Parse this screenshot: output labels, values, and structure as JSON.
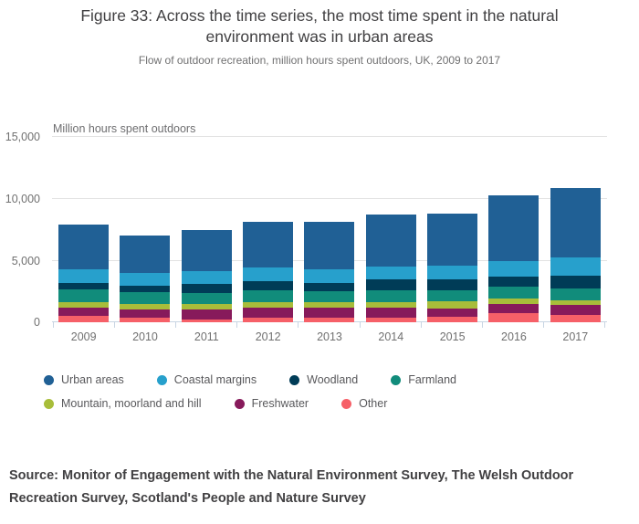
{
  "header": {
    "title": "Figure 33: Across the time series, the most time spent in the natural environment was in urban areas",
    "subtitle": "Flow of outdoor recreation, million hours spent outdoors, UK, 2009 to 2017"
  },
  "axis": {
    "y_title": "Million hours spent outdoors",
    "y_tick_labels": [
      "15,000",
      "10,000",
      "5,000",
      "0"
    ]
  },
  "source": "Source: Monitor of Engagement with the Natural Environment Survey, The Welsh Outdoor Recreation Survey, Scotland's People and Nature Survey",
  "colors": {
    "urban_areas": "#206095",
    "coastal_margins": "#27A0CC",
    "woodland": "#003C57",
    "farmland": "#118C7B",
    "mountain_moorland_and_hill": "#A8BD3A",
    "freshwater": "#871A5B",
    "other": "#F66068",
    "gridline": "#e2e2e2",
    "axis_line": "#c8d5e3",
    "title_text": "#414042",
    "muted_text": "#707070"
  },
  "legend": {
    "items": [
      {
        "label": "Urban areas",
        "color": "#206095"
      },
      {
        "label": "Coastal margins",
        "color": "#27A0CC"
      },
      {
        "label": "Woodland",
        "color": "#003C57"
      },
      {
        "label": "Farmland",
        "color": "#118C7B"
      },
      {
        "label": "Mountain, moorland and hill",
        "color": "#A8BD3A"
      },
      {
        "label": "Freshwater",
        "color": "#871A5B"
      },
      {
        "label": "Other",
        "color": "#F66068"
      }
    ]
  },
  "chart_data": {
    "type": "bar",
    "stacked": true,
    "title": "Figure 33: Across the time series, the most time spent in the natural environment was in urban areas",
    "subtitle": "Flow of outdoor recreation, million hours spent outdoors, UK, 2009 to 2017",
    "ylabel": "Million hours spent outdoors",
    "xlabel": "",
    "ylim": [
      0,
      15000
    ],
    "y_gridlines": [
      0,
      5000,
      10000,
      15000
    ],
    "grid": true,
    "legend_position": "bottom",
    "categories": [
      "2009",
      "2010",
      "2011",
      "2012",
      "2013",
      "2014",
      "2015",
      "2016",
      "2017"
    ],
    "stack_order_bottom_to_top": [
      "Other",
      "Freshwater",
      "Mountain, moorland and hill",
      "Farmland",
      "Woodland",
      "Coastal margins",
      "Urban areas"
    ],
    "series": [
      {
        "name": "Urban areas",
        "color": "#206095",
        "values": [
          3650,
          3000,
          3300,
          3700,
          3800,
          4200,
          4200,
          5350,
          5650
        ]
      },
      {
        "name": "Coastal margins",
        "color": "#27A0CC",
        "values": [
          1100,
          1050,
          1050,
          1100,
          1100,
          1050,
          1100,
          1250,
          1500
        ]
      },
      {
        "name": "Woodland",
        "color": "#003C57",
        "values": [
          500,
          500,
          700,
          750,
          650,
          900,
          900,
          850,
          1000
        ]
      },
      {
        "name": "Farmland",
        "color": "#118C7B",
        "values": [
          1050,
          950,
          950,
          950,
          950,
          950,
          900,
          950,
          950
        ]
      },
      {
        "name": "Mountain, moorland and hill",
        "color": "#A8BD3A",
        "values": [
          450,
          450,
          400,
          450,
          400,
          450,
          600,
          450,
          400
        ]
      },
      {
        "name": "Freshwater",
        "color": "#871A5B",
        "values": [
          650,
          650,
          800,
          750,
          800,
          750,
          650,
          700,
          800
        ]
      },
      {
        "name": "Other",
        "color": "#F66068",
        "values": [
          500,
          400,
          250,
          400,
          400,
          400,
          450,
          750,
          600
        ]
      }
    ],
    "totals": [
      7900,
      7000,
      7450,
      8100,
      8100,
      8700,
      8800,
      10300,
      10900
    ]
  }
}
